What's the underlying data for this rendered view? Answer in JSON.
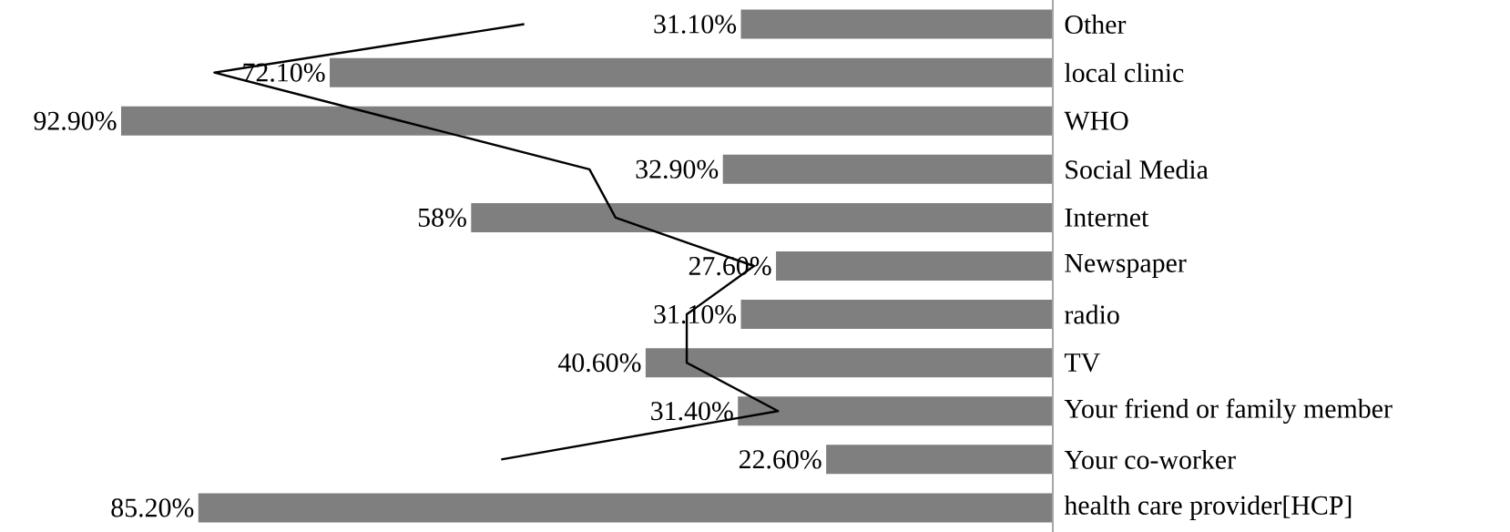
{
  "chart_data": {
    "type": "bar",
    "orientation": "horizontal",
    "tick_labels": "y",
    "categories": [
      "Other",
      "local clinic",
      "WHO",
      "Social Media",
      "Internet",
      "Newspaper",
      "radio",
      "TV",
      "Your friend or family member",
      "Your co-worker",
      "health care provider[HCP]"
    ],
    "series": [
      {
        "color": "#7f7f7f",
        "values": [
          31.1,
          72.1,
          92.9,
          32.9,
          58,
          27.6,
          31.1,
          40.6,
          31.4,
          22.6,
          85.2
        ],
        "value_labels": [
          "31.10%",
          "72.10%",
          "92.90%",
          "32.90%",
          "58%",
          "27.60%",
          "31.10%",
          "40.60%",
          "31.40%",
          "22.60%",
          "85.20%"
        ]
      },
      {
        "type": "line",
        "color": "#000000",
        "values": [
          52.7,
          83.6,
          65,
          46.2,
          43.6,
          29.8,
          36.5,
          36.5,
          27.4,
          55,
          null
        ]
      }
    ]
  }
}
